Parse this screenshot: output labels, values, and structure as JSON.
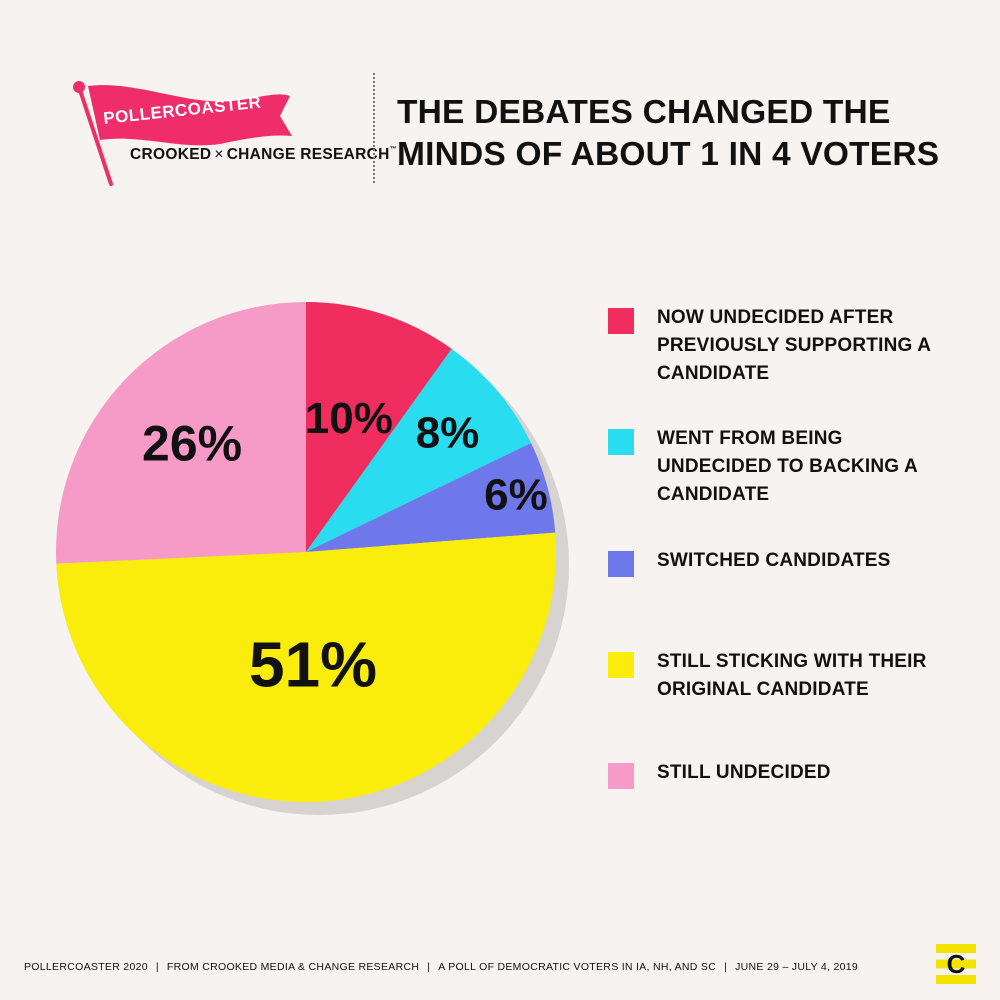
{
  "brand": {
    "flag_text": "POLLERCOASTER",
    "crooked": "CROOKED",
    "times": "×",
    "change_research": "CHANGE RESEARCH",
    "trademark": "™",
    "flag_color": "#ef2d6b",
    "corner_logo_letter": "C",
    "corner_logo_color": "#f4e300"
  },
  "headline": {
    "line1": "THE DEBATES CHANGED THE",
    "line2": "MINDS OF ABOUT 1 IN 4 VOTERS"
  },
  "chart_data": {
    "type": "pie",
    "title": "",
    "start_angle_deg": 0,
    "direction": "clockwise",
    "slices": [
      {
        "key": "undecided_after",
        "value": 10,
        "label": "10%",
        "color": "#ef2d5e"
      },
      {
        "key": "went_from_undecided",
        "value": 8,
        "label": "8%",
        "color": "#29dcef"
      },
      {
        "key": "switched",
        "value": 6,
        "label": "6%",
        "color": "#6f78ea"
      },
      {
        "key": "sticking",
        "value": 51,
        "label": "51%",
        "color": "#faec0b"
      },
      {
        "key": "still_undecided",
        "value": 26,
        "label": "26%",
        "color": "#f69ac7"
      }
    ],
    "legend_position": "right"
  },
  "legend": [
    {
      "color": "#ef2d5e",
      "lines": [
        "NOW UNDECIDED AFTER",
        "PREVIOUSLY SUPPORTING A",
        "CANDIDATE"
      ]
    },
    {
      "color": "#29dcef",
      "lines": [
        "WENT FROM BEING",
        "UNDECIDED TO BACKING A",
        "CANDIDATE"
      ]
    },
    {
      "color": "#6f78ea",
      "lines": [
        "SWITCHED CANDIDATES"
      ]
    },
    {
      "color": "#faec0b",
      "lines": [
        "STILL STICKING WITH THEIR",
        "ORIGINAL CANDIDATE"
      ]
    },
    {
      "color": "#f69ac7",
      "lines": [
        "STILL UNDECIDED"
      ]
    }
  ],
  "footer": {
    "parts": [
      "POLLERCOASTER 2020",
      "FROM CROOKED MEDIA & CHANGE RESEARCH",
      "A POLL OF DEMOCRATIC VOTERS IN IA, NH, AND SC",
      "JUNE 29 – JULY 4, 2019"
    ],
    "separator": "|"
  }
}
